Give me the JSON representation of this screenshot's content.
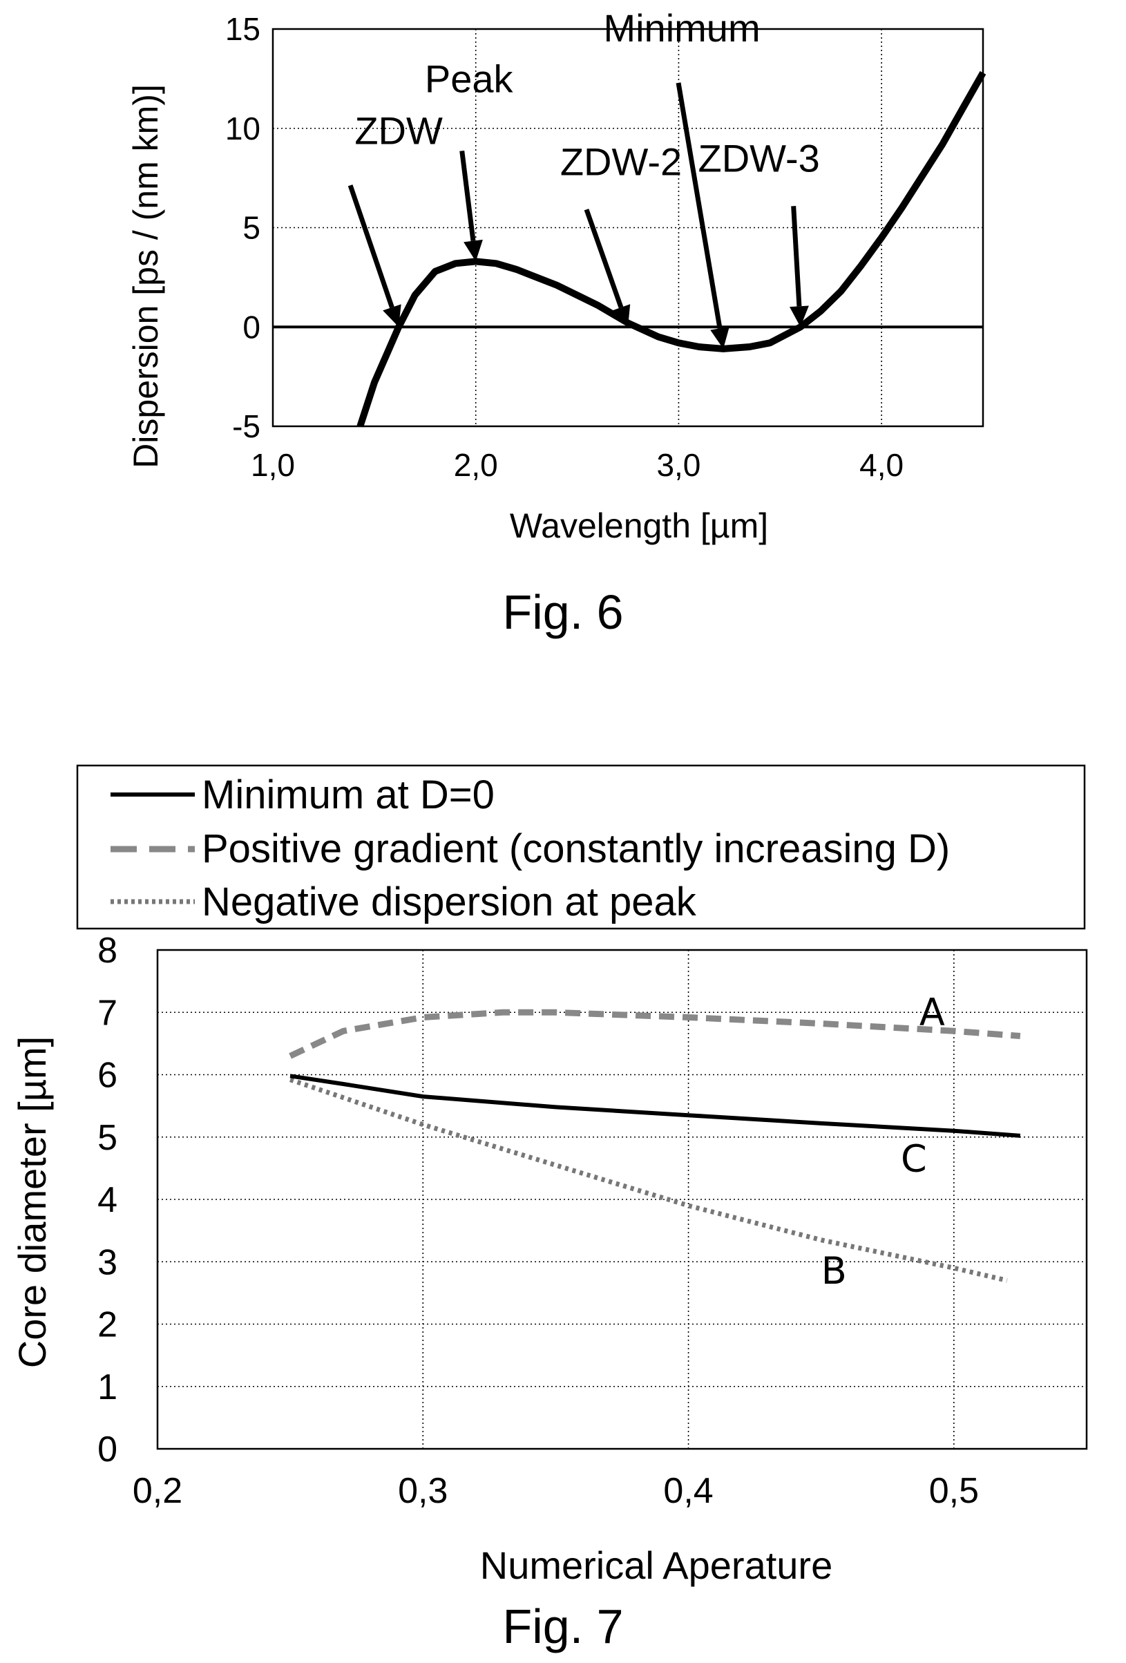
{
  "chart_data": [
    {
      "type": "line",
      "xlabel": "Wavelength [µm]",
      "ylabel": "Dispersion [ps / (nm km)]",
      "xlim": [
        1.0,
        4.5
      ],
      "ylim": [
        -5,
        15
      ],
      "x_ticks": [
        "1,0",
        "2,0",
        "3,0",
        "4,0"
      ],
      "y_ticks": [
        "15",
        "10",
        "5",
        "0",
        "-5"
      ],
      "grid": true,
      "series": [
        {
          "x": [
            1.43,
            1.5,
            1.62,
            1.7,
            1.8,
            1.9,
            2.0,
            2.1,
            2.2,
            2.4,
            2.6,
            2.75,
            2.9,
            3.0,
            3.1,
            3.22,
            3.35,
            3.45,
            3.6,
            3.7,
            3.8,
            3.9,
            4.0,
            4.1,
            4.2,
            4.3,
            4.4,
            4.5
          ],
          "y": [
            -5.0,
            -2.8,
            0.0,
            1.6,
            2.8,
            3.2,
            3.3,
            3.2,
            2.9,
            2.1,
            1.1,
            0.2,
            -0.5,
            -0.8,
            -1.0,
            -1.1,
            -1.0,
            -0.8,
            0.0,
            0.8,
            1.8,
            3.1,
            4.5,
            6.0,
            7.6,
            9.2,
            11.0,
            12.8
          ]
        }
      ],
      "annotations": [
        {
          "text": "ZDW",
          "x": 1.62,
          "y": 0.0
        },
        {
          "text": "Peak",
          "x": 2.0,
          "y": 3.3
        },
        {
          "text": "ZDW-2",
          "x": 2.75,
          "y": 0.0
        },
        {
          "text": "Minimum",
          "x": 3.22,
          "y": -1.1
        },
        {
          "text": "ZDW-3",
          "x": 3.6,
          "y": 0.0
        }
      ],
      "caption": "Fig. 6"
    },
    {
      "type": "line",
      "xlabel": "Numerical Aperature",
      "ylabel": "Core diameter [µm]",
      "xlim": [
        0.2,
        0.55
      ],
      "ylim": [
        0,
        8
      ],
      "x_ticks": [
        "0,2",
        "0,3",
        "0,4",
        "0,5"
      ],
      "y_ticks": [
        "8",
        "7",
        "6",
        "5",
        "4",
        "3",
        "2",
        "1",
        "0"
      ],
      "grid": true,
      "legend": "top",
      "series": [
        {
          "name": "Minimum at D=0",
          "label": "C",
          "style": "solid",
          "x": [
            0.25,
            0.27,
            0.3,
            0.35,
            0.4,
            0.45,
            0.5,
            0.525
          ],
          "y": [
            5.98,
            5.85,
            5.65,
            5.48,
            5.35,
            5.22,
            5.1,
            5.02
          ]
        },
        {
          "name": "Positive gradient (constantly increasing D)",
          "label": "A",
          "style": "dashed",
          "x": [
            0.25,
            0.27,
            0.3,
            0.33,
            0.35,
            0.4,
            0.45,
            0.5,
            0.525
          ],
          "y": [
            6.3,
            6.7,
            6.92,
            7.0,
            7.0,
            6.92,
            6.82,
            6.7,
            6.62
          ]
        },
        {
          "name": "Negative dispersion at peak",
          "label": "B",
          "style": "dotted",
          "x": [
            0.25,
            0.3,
            0.35,
            0.4,
            0.45,
            0.5,
            0.52
          ],
          "y": [
            5.92,
            5.2,
            4.55,
            3.9,
            3.35,
            2.9,
            2.7
          ]
        }
      ],
      "caption": "Fig. 7"
    }
  ]
}
